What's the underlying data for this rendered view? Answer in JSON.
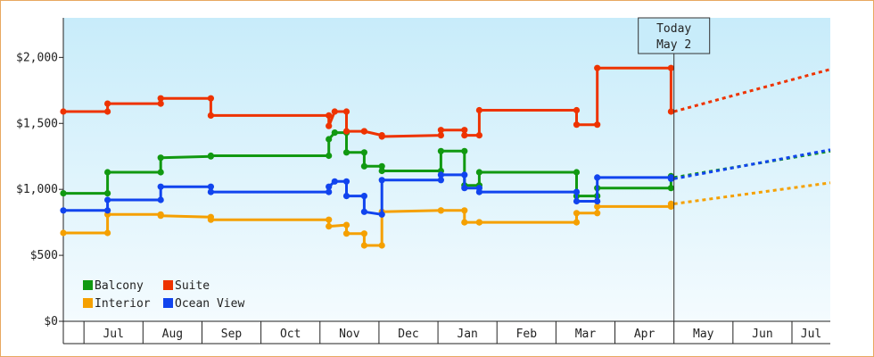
{
  "chart_data": {
    "type": "line",
    "ylim": [
      0,
      2300
    ],
    "y_ticks": [
      {
        "value": 0,
        "label": "$0"
      },
      {
        "value": 500,
        "label": "$500"
      },
      {
        "value": 1000,
        "label": "$1,000"
      },
      {
        "value": 1500,
        "label": "$1,500"
      },
      {
        "value": 2000,
        "label": "$2,000"
      }
    ],
    "xlim": [
      0,
      13
    ],
    "months": [
      "Jul",
      "Aug",
      "Sep",
      "Oct",
      "Nov",
      "Dec",
      "Jan",
      "Feb",
      "Mar",
      "Apr",
      "May",
      "Jun",
      "Jul"
    ],
    "today": {
      "line1": "Today",
      "line2": "May 2",
      "x": 10.35
    },
    "grid": false,
    "legend_position": "bottom-left",
    "colors": {
      "background_top": "#c8ecfa",
      "background_bottom": "#f4fbfe",
      "frame_border": "#e8a860",
      "axis": "#222222"
    },
    "series": [
      {
        "name": "Balcony",
        "color": "#119911",
        "history": [
          [
            0,
            970
          ],
          [
            0.75,
            970
          ],
          [
            0.75,
            1130
          ],
          [
            1.65,
            1130
          ],
          [
            1.65,
            1240
          ],
          [
            2.5,
            1250
          ],
          [
            2.5,
            1255
          ],
          [
            4.5,
            1255
          ],
          [
            4.5,
            1380
          ],
          [
            4.6,
            1430
          ],
          [
            4.8,
            1430
          ],
          [
            4.8,
            1280
          ],
          [
            5.1,
            1280
          ],
          [
            5.1,
            1175
          ],
          [
            5.4,
            1175
          ],
          [
            5.4,
            1140
          ],
          [
            6.4,
            1140
          ],
          [
            6.4,
            1290
          ],
          [
            6.8,
            1290
          ],
          [
            6.8,
            1030
          ],
          [
            7.05,
            1030
          ],
          [
            7.05,
            1130
          ],
          [
            8.7,
            1130
          ],
          [
            8.7,
            950
          ],
          [
            9.05,
            950
          ],
          [
            9.05,
            1010
          ],
          [
            10.3,
            1010
          ],
          [
            10.3,
            1100
          ]
        ],
        "forecast": [
          [
            10.35,
            1090
          ],
          [
            13,
            1290
          ]
        ]
      },
      {
        "name": "Suite",
        "color": "#ee3300",
        "history": [
          [
            0,
            1590
          ],
          [
            0.75,
            1590
          ],
          [
            0.75,
            1650
          ],
          [
            1.65,
            1650
          ],
          [
            1.65,
            1690
          ],
          [
            2.5,
            1690
          ],
          [
            2.5,
            1560
          ],
          [
            4.5,
            1560
          ],
          [
            4.5,
            1480
          ],
          [
            4.6,
            1590
          ],
          [
            4.8,
            1590
          ],
          [
            4.8,
            1440
          ],
          [
            5.1,
            1440
          ],
          [
            5.1,
            1440
          ],
          [
            5.4,
            1410
          ],
          [
            5.4,
            1400
          ],
          [
            6.4,
            1410
          ],
          [
            6.4,
            1450
          ],
          [
            6.8,
            1450
          ],
          [
            6.8,
            1410
          ],
          [
            7.05,
            1410
          ],
          [
            7.05,
            1600
          ],
          [
            8.7,
            1600
          ],
          [
            8.7,
            1490
          ],
          [
            9.05,
            1490
          ],
          [
            9.05,
            1920
          ],
          [
            10.3,
            1920
          ],
          [
            10.3,
            1590
          ]
        ],
        "forecast": [
          [
            10.35,
            1590
          ],
          [
            13,
            1910
          ]
        ]
      },
      {
        "name": "Interior",
        "color": "#f5a000",
        "history": [
          [
            0,
            670
          ],
          [
            0.75,
            670
          ],
          [
            0.75,
            810
          ],
          [
            1.65,
            810
          ],
          [
            1.65,
            800
          ],
          [
            2.5,
            790
          ],
          [
            2.5,
            770
          ],
          [
            4.5,
            770
          ],
          [
            4.5,
            720
          ],
          [
            4.8,
            730
          ],
          [
            4.8,
            665
          ],
          [
            5.1,
            665
          ],
          [
            5.1,
            575
          ],
          [
            5.4,
            575
          ],
          [
            5.4,
            830
          ],
          [
            6.4,
            840
          ],
          [
            6.4,
            840
          ],
          [
            6.8,
            840
          ],
          [
            6.8,
            750
          ],
          [
            7.05,
            750
          ],
          [
            7.05,
            750
          ],
          [
            8.7,
            750
          ],
          [
            8.7,
            820
          ],
          [
            9.05,
            820
          ],
          [
            9.05,
            870
          ],
          [
            10.3,
            870
          ],
          [
            10.3,
            890
          ]
        ],
        "forecast": [
          [
            10.35,
            890
          ],
          [
            13,
            1050
          ]
        ]
      },
      {
        "name": "Ocean View",
        "color": "#1144ee",
        "history": [
          [
            0,
            840
          ],
          [
            0.75,
            840
          ],
          [
            0.75,
            920
          ],
          [
            1.65,
            920
          ],
          [
            1.65,
            1020
          ],
          [
            2.5,
            1020
          ],
          [
            2.5,
            980
          ],
          [
            4.5,
            980
          ],
          [
            4.5,
            1020
          ],
          [
            4.6,
            1060
          ],
          [
            4.8,
            1060
          ],
          [
            4.8,
            950
          ],
          [
            5.1,
            950
          ],
          [
            5.1,
            830
          ],
          [
            5.4,
            810
          ],
          [
            5.4,
            1070
          ],
          [
            6.4,
            1070
          ],
          [
            6.4,
            1110
          ],
          [
            6.8,
            1110
          ],
          [
            6.8,
            1010
          ],
          [
            7.05,
            1010
          ],
          [
            7.05,
            980
          ],
          [
            8.7,
            980
          ],
          [
            8.7,
            910
          ],
          [
            9.05,
            910
          ],
          [
            9.05,
            1090
          ],
          [
            10.3,
            1090
          ],
          [
            10.3,
            1080
          ]
        ],
        "forecast": [
          [
            10.35,
            1080
          ],
          [
            13,
            1300
          ]
        ]
      }
    ]
  }
}
